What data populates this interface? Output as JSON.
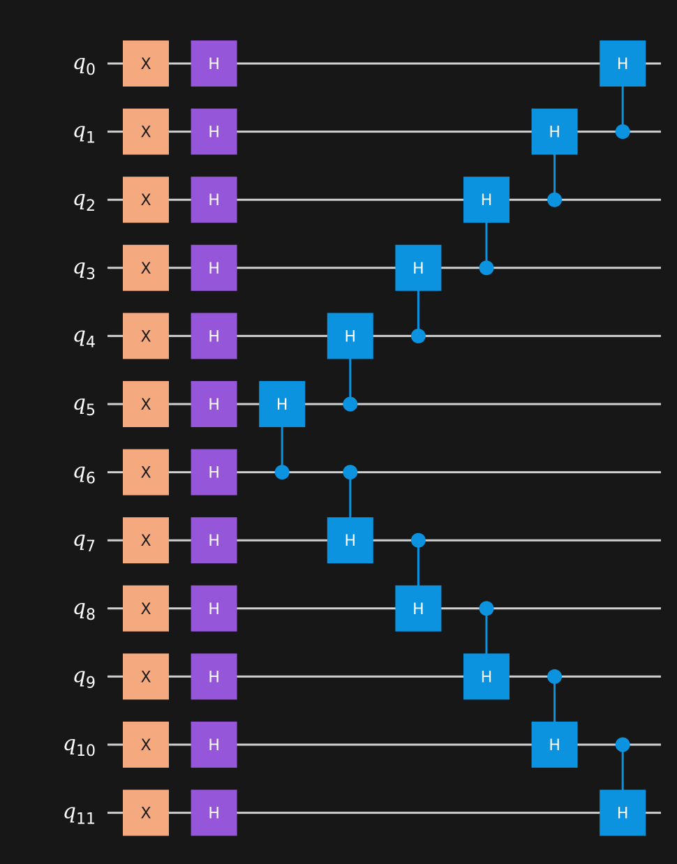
{
  "circuit": {
    "qubit_prefix": "q",
    "qubits": [
      "0",
      "1",
      "2",
      "3",
      "4",
      "5",
      "6",
      "7",
      "8",
      "9",
      "10",
      "11"
    ],
    "gate_colors": {
      "X": {
        "fill": "#f4a97f",
        "text": "#1a1a1a"
      },
      "H": {
        "fill": "#9556d9",
        "text": "#ffffff"
      },
      "CH": {
        "fill": "#0b93e0",
        "text": "#ffffff"
      }
    },
    "wire_color": "#d0d0d0",
    "background": "#171718",
    "columns": [
      {
        "gates": [
          {
            "type": "X",
            "label": "X",
            "qubit": 0
          },
          {
            "type": "X",
            "label": "X",
            "qubit": 1
          },
          {
            "type": "X",
            "label": "X",
            "qubit": 2
          },
          {
            "type": "X",
            "label": "X",
            "qubit": 3
          },
          {
            "type": "X",
            "label": "X",
            "qubit": 4
          },
          {
            "type": "X",
            "label": "X",
            "qubit": 5
          },
          {
            "type": "X",
            "label": "X",
            "qubit": 6
          },
          {
            "type": "X",
            "label": "X",
            "qubit": 7
          },
          {
            "type": "X",
            "label": "X",
            "qubit": 8
          },
          {
            "type": "X",
            "label": "X",
            "qubit": 9
          },
          {
            "type": "X",
            "label": "X",
            "qubit": 10
          },
          {
            "type": "X",
            "label": "X",
            "qubit": 11
          }
        ]
      },
      {
        "gates": [
          {
            "type": "H",
            "label": "H",
            "qubit": 0
          },
          {
            "type": "H",
            "label": "H",
            "qubit": 1
          },
          {
            "type": "H",
            "label": "H",
            "qubit": 2
          },
          {
            "type": "H",
            "label": "H",
            "qubit": 3
          },
          {
            "type": "H",
            "label": "H",
            "qubit": 4
          },
          {
            "type": "H",
            "label": "H",
            "qubit": 5
          },
          {
            "type": "H",
            "label": "H",
            "qubit": 6
          },
          {
            "type": "H",
            "label": "H",
            "qubit": 7
          },
          {
            "type": "H",
            "label": "H",
            "qubit": 8
          },
          {
            "type": "H",
            "label": "H",
            "qubit": 9
          },
          {
            "type": "H",
            "label": "H",
            "qubit": 10
          },
          {
            "type": "H",
            "label": "H",
            "qubit": 11
          }
        ]
      },
      {
        "gates": [
          {
            "type": "CH",
            "label": "H",
            "control": 6,
            "target": 5
          }
        ]
      },
      {
        "gates": [
          {
            "type": "CH",
            "label": "H",
            "control": 5,
            "target": 4
          },
          {
            "type": "CH",
            "label": "H",
            "control": 6,
            "target": 7
          }
        ]
      },
      {
        "gates": [
          {
            "type": "CH",
            "label": "H",
            "control": 4,
            "target": 3
          },
          {
            "type": "CH",
            "label": "H",
            "control": 7,
            "target": 8
          }
        ]
      },
      {
        "gates": [
          {
            "type": "CH",
            "label": "H",
            "control": 3,
            "target": 2
          },
          {
            "type": "CH",
            "label": "H",
            "control": 8,
            "target": 9
          }
        ]
      },
      {
        "gates": [
          {
            "type": "CH",
            "label": "H",
            "control": 2,
            "target": 1
          },
          {
            "type": "CH",
            "label": "H",
            "control": 9,
            "target": 10
          }
        ]
      },
      {
        "gates": [
          {
            "type": "CH",
            "label": "H",
            "control": 1,
            "target": 0
          },
          {
            "type": "CH",
            "label": "H",
            "control": 10,
            "target": 11
          }
        ]
      }
    ]
  }
}
